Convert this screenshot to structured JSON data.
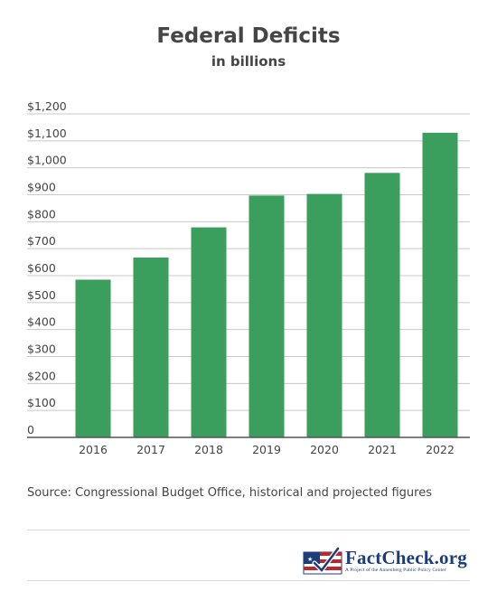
{
  "chart_data": {
    "type": "bar",
    "title": "Federal Deficits",
    "subtitle": "in billions",
    "xlabel": "",
    "ylabel": "",
    "categories": [
      "2016",
      "2017",
      "2018",
      "2019",
      "2020",
      "2021",
      "2022"
    ],
    "values": [
      585,
      667,
      779,
      897,
      903,
      981,
      1130
    ],
    "ylim": [
      0,
      1200
    ],
    "yticks": [
      0,
      100,
      200,
      300,
      400,
      500,
      600,
      700,
      800,
      900,
      1000,
      1100,
      1200
    ],
    "ytick_labels": [
      "0",
      "$100",
      "$200",
      "$300",
      "$400",
      "$500",
      "$600",
      "$700",
      "$800",
      "$900",
      "$1,000",
      "$1,100",
      "$1,200"
    ],
    "grid": true,
    "bar_color": "#3a9e5c"
  },
  "source": "Source: Congressional Budget Office, historical and projected figures",
  "logo": {
    "name": "FactCheck.org",
    "tagline": "A Project of the Annenberg Public Policy Center"
  }
}
